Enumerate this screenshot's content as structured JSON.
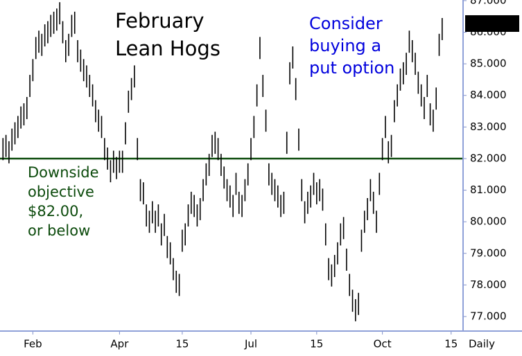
{
  "chart_data": {
    "type": "ohlc",
    "title": [
      "February",
      "Lean Hogs"
    ],
    "annotations": [
      {
        "lines": [
          "Consider",
          "buying a",
          "put option"
        ],
        "color": "#0000dd"
      },
      {
        "lines": [
          "Downside",
          "objective",
          "$82.00,",
          "or below"
        ],
        "color": "#0b4a0b"
      }
    ],
    "x_label": "Daily",
    "reference_line": {
      "value": 82,
      "color": "#0b4a0b"
    },
    "last_price": 86.275,
    "color": "#000000",
    "ylim": [
      76.54,
      87.02
    ],
    "yticks": [
      {
        "value": 77,
        "label": "77.000"
      },
      {
        "value": 78,
        "label": "78.000"
      },
      {
        "value": 79,
        "label": "79.000"
      },
      {
        "value": 80,
        "label": "80.000"
      },
      {
        "value": 81,
        "label": "81.000"
      },
      {
        "value": 82,
        "label": "82.000"
      },
      {
        "value": 83,
        "label": "83.000"
      },
      {
        "value": 84,
        "label": "84.000"
      },
      {
        "value": 85,
        "label": "85.000"
      },
      {
        "value": 86,
        "label": "86.000"
      },
      {
        "value": 87,
        "label": "87.000"
      }
    ],
    "xlim": [
      -1,
      154
    ],
    "xticks": [
      {
        "value": 10,
        "label": "Feb"
      },
      {
        "value": 39,
        "label": "Apr"
      },
      {
        "value": 60,
        "label": "15"
      },
      {
        "value": 83,
        "label": "Jul"
      },
      {
        "value": 105,
        "label": "15"
      },
      {
        "value": 127,
        "label": "Oct"
      },
      {
        "value": 150,
        "label": "15"
      }
    ],
    "high": [
      82.65,
      82.75,
      82.55,
      82.95,
      83.15,
      83.35,
      83.65,
      83.75,
      83.95,
      84.65,
      85.15,
      85.85,
      86.05,
      85.95,
      86.25,
      86.35,
      86.55,
      86.65,
      86.75,
      86.95,
      86.35,
      85.75,
      85.95,
      86.55,
      86.65,
      85.75,
      85.45,
      85.15,
      84.95,
      84.65,
      84.35,
      83.85,
      83.55,
      83.35,
      82.65,
      82.35,
      81.95,
      82.25,
      82.05,
      82.25,
      82.25,
      83.15,
      84.15,
      84.55,
      84.95,
      82.65,
      81.35,
      81.25,
      80.55,
      80.35,
      80.65,
      80.35,
      80.55,
      79.95,
      80.25,
      79.55,
      79.35,
      78.85,
      78.45,
      78.35,
      79.75,
      79.95,
      80.55,
      80.95,
      80.85,
      80.55,
      80.75,
      81.35,
      81.85,
      82.15,
      82.75,
      82.85,
      82.65,
      82.15,
      81.75,
      81.35,
      81.15,
      80.85,
      81.55,
      80.95,
      80.85,
      81.35,
      81.85,
      82.65,
      83.35,
      84.35,
      85.85,
      84.65,
      83.55,
      81.85,
      81.55,
      81.35,
      81.15,
      80.85,
      80.95,
      82.85,
      85.05,
      85.55,
      84.55,
      82.95,
      81.35,
      80.65,
      80.95,
      81.15,
      81.55,
      81.25,
      81.35,
      81.05,
      79.95,
      78.85,
      78.65,
      78.95,
      79.35,
      79.95,
      80.15,
      79.15,
      78.35,
      77.85,
      77.55,
      77.75,
      79.75,
      80.35,
      80.75,
      81.35,
      80.95,
      80.35,
      81.55,
      82.65,
      83.35,
      82.55,
      82.75,
      83.85,
      84.35,
      84.85,
      85.05,
      85.35,
      86.05,
      85.75,
      85.35,
      84.75,
      84.35,
      83.95,
      84.65,
      83.75,
      83.55,
      84.25,
      85.95,
      86.45
    ],
    "low": [
      81.95,
      82.05,
      81.85,
      82.25,
      82.45,
      82.65,
      82.95,
      83.05,
      83.25,
      83.95,
      84.45,
      85.15,
      85.35,
      85.25,
      85.55,
      85.65,
      85.85,
      85.95,
      86.05,
      86.25,
      85.65,
      85.05,
      85.25,
      85.85,
      85.95,
      85.05,
      84.75,
      84.45,
      84.25,
      83.95,
      83.65,
      83.15,
      82.85,
      82.65,
      81.95,
      81.65,
      81.25,
      81.55,
      81.35,
      81.55,
      81.55,
      82.45,
      83.45,
      83.85,
      84.25,
      81.95,
      80.65,
      80.55,
      79.85,
      79.65,
      79.95,
      79.65,
      79.85,
      79.25,
      79.55,
      78.85,
      78.65,
      78.15,
      77.75,
      77.65,
      79.05,
      79.25,
      79.85,
      80.25,
      80.15,
      79.85,
      80.05,
      80.65,
      81.15,
      81.45,
      82.05,
      82.15,
      81.95,
      81.45,
      81.05,
      80.65,
      80.45,
      80.15,
      80.85,
      80.25,
      80.15,
      80.65,
      81.15,
      81.95,
      82.65,
      83.65,
      85.15,
      83.95,
      82.85,
      81.15,
      80.85,
      80.65,
      80.45,
      80.15,
      80.25,
      82.15,
      84.35,
      84.85,
      83.85,
      82.25,
      80.65,
      79.95,
      80.25,
      80.45,
      80.85,
      80.55,
      80.65,
      80.35,
      79.25,
      78.15,
      77.95,
      78.25,
      78.65,
      79.25,
      79.45,
      78.45,
      77.65,
      77.15,
      76.85,
      77.05,
      79.05,
      79.65,
      80.05,
      80.65,
      80.25,
      79.65,
      80.85,
      81.95,
      82.65,
      81.85,
      82.05,
      83.15,
      83.65,
      84.15,
      84.35,
      84.65,
      85.35,
      85.05,
      84.65,
      84.05,
      83.65,
      83.25,
      83.95,
      83.05,
      82.85,
      83.55,
      85.25,
      85.75
    ]
  }
}
